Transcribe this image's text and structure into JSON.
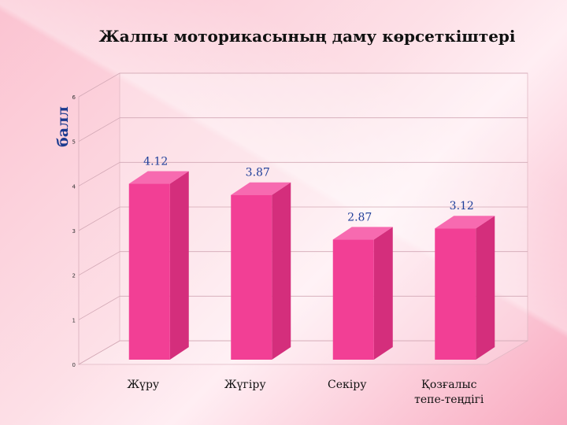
{
  "chart_data": {
    "type": "bar",
    "title": "Жалпы моторикасының даму көрсеткіштері",
    "ylabel": "балл",
    "xlabel": "",
    "categories": [
      "Жүру",
      "Жүгіру",
      "Секіру",
      "Қозғалыс тепе-теңдігі"
    ],
    "category_lines": [
      [
        "Жүру"
      ],
      [
        "Жүгіру"
      ],
      [
        "Секіру"
      ],
      [
        "Қозғалыс",
        "тепе-теңдігі"
      ]
    ],
    "values": [
      4.12,
      3.87,
      2.87,
      3.12
    ],
    "data_labels": [
      "4.12",
      "3.87",
      "2.87",
      "3.12"
    ],
    "ylim": [
      0,
      6
    ],
    "yticks": [
      "0",
      "1",
      "2",
      "3",
      "4",
      "5",
      "6"
    ],
    "grid": true,
    "style": "3d-column",
    "colors": {
      "front": "#f23f95",
      "side": "#d42e7c",
      "top": "#f76ab0",
      "label": "#1f3f9a"
    }
  }
}
